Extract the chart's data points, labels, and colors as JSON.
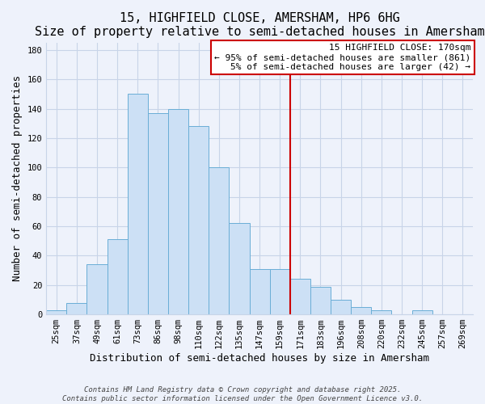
{
  "title": "15, HIGHFIELD CLOSE, AMERSHAM, HP6 6HG",
  "subtitle": "Size of property relative to semi-detached houses in Amersham",
  "xlabel": "Distribution of semi-detached houses by size in Amersham",
  "ylabel": "Number of semi-detached properties",
  "bin_labels": [
    "25sqm",
    "37sqm",
    "49sqm",
    "61sqm",
    "73sqm",
    "86sqm",
    "98sqm",
    "110sqm",
    "122sqm",
    "135sqm",
    "147sqm",
    "159sqm",
    "171sqm",
    "183sqm",
    "196sqm",
    "208sqm",
    "220sqm",
    "232sqm",
    "245sqm",
    "257sqm",
    "269sqm"
  ],
  "bar_values": [
    3,
    8,
    34,
    51,
    150,
    137,
    140,
    128,
    100,
    62,
    31,
    31,
    24,
    19,
    10,
    5,
    3,
    0,
    3,
    0,
    0
  ],
  "bar_color": "#cce0f5",
  "bar_edge_color": "#6aaed6",
  "ylim": [
    0,
    185
  ],
  "yticks": [
    0,
    20,
    40,
    60,
    80,
    100,
    120,
    140,
    160,
    180
  ],
  "property_line_idx": 12,
  "property_line_color": "#cc0000",
  "annotation_title": "15 HIGHFIELD CLOSE: 170sqm",
  "annotation_line1": "← 95% of semi-detached houses are smaller (861)",
  "annotation_line2": "5% of semi-detached houses are larger (42) →",
  "annotation_box_color": "#ffffff",
  "annotation_box_edge": "#cc0000",
  "footer_line1": "Contains HM Land Registry data © Crown copyright and database right 2025.",
  "footer_line2": "Contains public sector information licensed under the Open Government Licence v3.0.",
  "background_color": "#eef2fb",
  "grid_color": "#c8d4e8",
  "title_fontsize": 11,
  "subtitle_fontsize": 9.5,
  "axis_label_fontsize": 9,
  "tick_fontsize": 7.5,
  "footer_fontsize": 6.5,
  "anno_fontsize": 8
}
